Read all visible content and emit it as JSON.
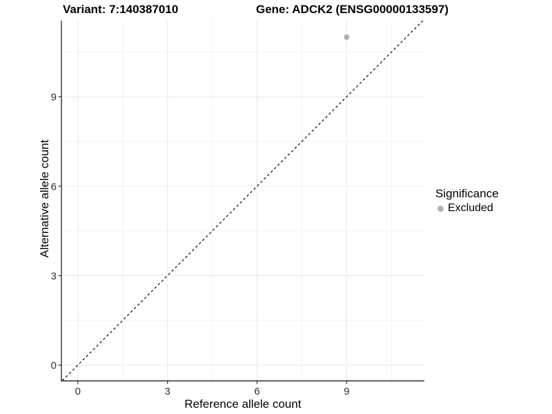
{
  "chart_data": {
    "type": "scatter",
    "titles": [
      "Variant: 7:140387010",
      "Gene: ADCK2 (ENSG00000133597)"
    ],
    "xlabel": "Reference allele count",
    "ylabel": "Alternative allele count",
    "xlim": [
      -0.55,
      11.6
    ],
    "ylim": [
      -0.53,
      11.55
    ],
    "xticks": [
      0,
      3,
      6,
      9
    ],
    "yticks": [
      0,
      3,
      6,
      9
    ],
    "xminor": [
      1.5,
      4.5,
      7.5,
      10.5
    ],
    "yminor": [
      1.5,
      4.5,
      7.5,
      10.5
    ],
    "grid": true,
    "points": [
      {
        "x": 9,
        "y": 11,
        "series": "Excluded"
      }
    ],
    "reference_line": {
      "type": "identity",
      "style": "dashed"
    },
    "legend": {
      "title": "Significance",
      "position": "right",
      "items": [
        {
          "label": "Excluded",
          "color": "#b3b3b3"
        }
      ]
    },
    "colors": {
      "point": "#b3b3b3",
      "grid_major": "#e7e7e7",
      "grid_minor": "#f2f2f2",
      "axis": "#2e2e2e",
      "tick_text": "#303030",
      "reference_line": "#000000",
      "background": "#ffffff"
    }
  }
}
